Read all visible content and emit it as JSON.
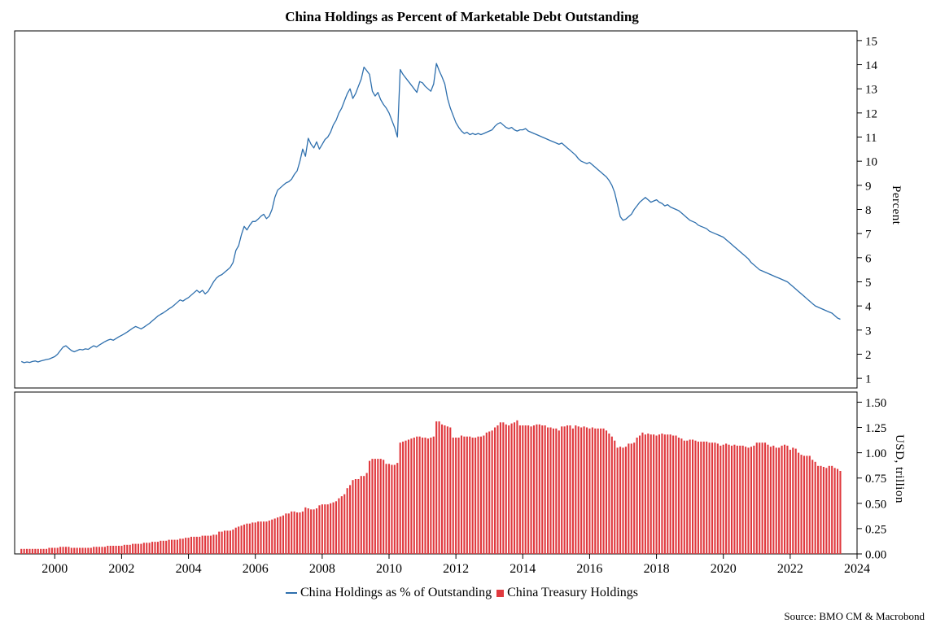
{
  "title": "China Holdings as Percent of Marketable Debt Outstanding",
  "source": "Source: BMO CM & Macrobond",
  "colors": {
    "line": "#2e6fad",
    "bar": "#e0393e",
    "axis": "#000000"
  },
  "legend": {
    "items": [
      {
        "label": "China Holdings as % of Outstanding",
        "marker": "line",
        "color": "#2e6fad"
      },
      {
        "label": "China Treasury Holdings",
        "marker": "square",
        "color": "#e0393e"
      }
    ]
  },
  "x_axis": {
    "lim": [
      1998.8,
      2024.0
    ],
    "ticks": [
      2000,
      2002,
      2004,
      2006,
      2008,
      2010,
      2012,
      2014,
      2016,
      2018,
      2020,
      2022,
      2024
    ]
  },
  "chart_data": [
    {
      "type": "line",
      "name": "China Holdings as % of Outstanding",
      "ylabel": "Percent",
      "ylim": [
        0.6,
        15.4
      ],
      "yticks": [
        1,
        2,
        3,
        4,
        5,
        6,
        7,
        8,
        9,
        10,
        11,
        12,
        13,
        14,
        15
      ],
      "ytick_format": "int",
      "legend_position": "bottom",
      "grid": false,
      "x_start": 1999.0,
      "x_step": 0.083333,
      "values": [
        1.7,
        1.65,
        1.68,
        1.66,
        1.7,
        1.72,
        1.68,
        1.72,
        1.75,
        1.78,
        1.8,
        1.85,
        1.9,
        2.0,
        2.15,
        2.3,
        2.35,
        2.25,
        2.15,
        2.1,
        2.15,
        2.2,
        2.18,
        2.22,
        2.2,
        2.28,
        2.35,
        2.3,
        2.38,
        2.45,
        2.52,
        2.58,
        2.62,
        2.58,
        2.65,
        2.72,
        2.78,
        2.85,
        2.92,
        3.0,
        3.08,
        3.15,
        3.1,
        3.05,
        3.12,
        3.2,
        3.28,
        3.38,
        3.48,
        3.58,
        3.65,
        3.72,
        3.8,
        3.88,
        3.95,
        4.05,
        4.15,
        4.25,
        4.2,
        4.28,
        4.35,
        4.45,
        4.55,
        4.65,
        4.55,
        4.65,
        4.5,
        4.6,
        4.8,
        5.0,
        5.15,
        5.25,
        5.3,
        5.4,
        5.5,
        5.6,
        5.8,
        6.3,
        6.5,
        6.95,
        7.3,
        7.15,
        7.35,
        7.5,
        7.5,
        7.6,
        7.72,
        7.8,
        7.62,
        7.72,
        8.0,
        8.5,
        8.8,
        8.9,
        9.0,
        9.1,
        9.15,
        9.25,
        9.45,
        9.6,
        10.0,
        10.5,
        10.2,
        10.95,
        10.7,
        10.55,
        10.8,
        10.5,
        10.7,
        10.9,
        11.0,
        11.2,
        11.5,
        11.7,
        12.0,
        12.2,
        12.5,
        12.8,
        13.0,
        12.6,
        12.8,
        13.1,
        13.4,
        13.9,
        13.75,
        13.6,
        12.9,
        12.7,
        12.85,
        12.55,
        12.35,
        12.2,
        12.0,
        11.7,
        11.4,
        11.0,
        13.8,
        13.6,
        13.45,
        13.3,
        13.15,
        13.0,
        12.85,
        13.3,
        13.25,
        13.1,
        13.0,
        12.9,
        13.2,
        14.05,
        13.75,
        13.5,
        13.2,
        12.6,
        12.2,
        11.9,
        11.6,
        11.4,
        11.25,
        11.15,
        11.2,
        11.1,
        11.15,
        11.1,
        11.15,
        11.1,
        11.15,
        11.2,
        11.25,
        11.3,
        11.45,
        11.55,
        11.6,
        11.5,
        11.4,
        11.35,
        11.4,
        11.3,
        11.25,
        11.3,
        11.3,
        11.35,
        11.25,
        11.2,
        11.15,
        11.1,
        11.05,
        11.0,
        10.95,
        10.9,
        10.85,
        10.8,
        10.75,
        10.7,
        10.75,
        10.65,
        10.55,
        10.45,
        10.35,
        10.25,
        10.1,
        10.0,
        9.95,
        9.9,
        9.95,
        9.85,
        9.75,
        9.65,
        9.55,
        9.45,
        9.35,
        9.2,
        9.0,
        8.7,
        8.2,
        7.7,
        7.55,
        7.6,
        7.7,
        7.8,
        8.0,
        8.15,
        8.3,
        8.4,
        8.5,
        8.4,
        8.3,
        8.35,
        8.4,
        8.3,
        8.25,
        8.15,
        8.2,
        8.1,
        8.05,
        8.0,
        7.95,
        7.85,
        7.75,
        7.65,
        7.55,
        7.5,
        7.45,
        7.35,
        7.3,
        7.25,
        7.2,
        7.1,
        7.05,
        7.0,
        6.95,
        6.9,
        6.85,
        6.75,
        6.65,
        6.55,
        6.45,
        6.35,
        6.25,
        6.15,
        6.05,
        5.95,
        5.8,
        5.7,
        5.6,
        5.5,
        5.45,
        5.4,
        5.35,
        5.3,
        5.25,
        5.2,
        5.15,
        5.1,
        5.05,
        5.0,
        4.9,
        4.8,
        4.7,
        4.6,
        4.5,
        4.4,
        4.3,
        4.2,
        4.1,
        4.0,
        3.95,
        3.9,
        3.85,
        3.8,
        3.75,
        3.7,
        3.6,
        3.5,
        3.45
      ]
    },
    {
      "type": "bar",
      "name": "China Treasury Holdings",
      "ylabel": "USD, trillion",
      "ylim": [
        0,
        1.6
      ],
      "yticks": [
        0,
        0.25,
        0.5,
        0.75,
        1.0,
        1.25,
        1.5
      ],
      "ytick_format": "fixed2",
      "grid": false,
      "x_start": 1999.0,
      "x_step": 0.083333,
      "values": [
        0.05,
        0.05,
        0.05,
        0.05,
        0.05,
        0.05,
        0.05,
        0.05,
        0.05,
        0.05,
        0.06,
        0.06,
        0.06,
        0.06,
        0.07,
        0.07,
        0.07,
        0.07,
        0.06,
        0.06,
        0.06,
        0.06,
        0.06,
        0.06,
        0.06,
        0.06,
        0.07,
        0.07,
        0.07,
        0.07,
        0.07,
        0.08,
        0.08,
        0.08,
        0.08,
        0.08,
        0.08,
        0.09,
        0.09,
        0.09,
        0.1,
        0.1,
        0.1,
        0.1,
        0.11,
        0.11,
        0.11,
        0.12,
        0.12,
        0.12,
        0.13,
        0.13,
        0.13,
        0.14,
        0.14,
        0.14,
        0.14,
        0.15,
        0.15,
        0.16,
        0.16,
        0.17,
        0.17,
        0.17,
        0.17,
        0.18,
        0.18,
        0.18,
        0.18,
        0.19,
        0.19,
        0.22,
        0.22,
        0.23,
        0.23,
        0.23,
        0.24,
        0.26,
        0.27,
        0.28,
        0.29,
        0.3,
        0.3,
        0.31,
        0.31,
        0.32,
        0.32,
        0.32,
        0.32,
        0.33,
        0.34,
        0.35,
        0.36,
        0.37,
        0.38,
        0.4,
        0.4,
        0.42,
        0.42,
        0.41,
        0.41,
        0.42,
        0.46,
        0.45,
        0.44,
        0.44,
        0.45,
        0.48,
        0.49,
        0.49,
        0.49,
        0.5,
        0.51,
        0.52,
        0.55,
        0.57,
        0.59,
        0.65,
        0.68,
        0.73,
        0.74,
        0.74,
        0.77,
        0.77,
        0.8,
        0.92,
        0.94,
        0.94,
        0.94,
        0.94,
        0.93,
        0.89,
        0.89,
        0.88,
        0.88,
        0.9,
        1.1,
        1.11,
        1.12,
        1.13,
        1.14,
        1.15,
        1.16,
        1.16,
        1.15,
        1.15,
        1.14,
        1.15,
        1.16,
        1.31,
        1.31,
        1.28,
        1.27,
        1.26,
        1.25,
        1.15,
        1.15,
        1.15,
        1.17,
        1.16,
        1.16,
        1.16,
        1.15,
        1.15,
        1.16,
        1.16,
        1.17,
        1.2,
        1.21,
        1.22,
        1.25,
        1.27,
        1.3,
        1.3,
        1.28,
        1.27,
        1.29,
        1.3,
        1.32,
        1.27,
        1.27,
        1.27,
        1.27,
        1.26,
        1.27,
        1.28,
        1.28,
        1.27,
        1.27,
        1.25,
        1.25,
        1.24,
        1.24,
        1.22,
        1.26,
        1.26,
        1.27,
        1.27,
        1.24,
        1.27,
        1.26,
        1.25,
        1.26,
        1.25,
        1.24,
        1.25,
        1.24,
        1.24,
        1.24,
        1.24,
        1.22,
        1.19,
        1.16,
        1.12,
        1.05,
        1.06,
        1.05,
        1.06,
        1.09,
        1.09,
        1.1,
        1.15,
        1.17,
        1.2,
        1.18,
        1.19,
        1.18,
        1.18,
        1.17,
        1.18,
        1.19,
        1.18,
        1.18,
        1.18,
        1.17,
        1.17,
        1.15,
        1.14,
        1.12,
        1.12,
        1.13,
        1.13,
        1.12,
        1.11,
        1.11,
        1.11,
        1.11,
        1.1,
        1.1,
        1.1,
        1.09,
        1.07,
        1.08,
        1.09,
        1.08,
        1.07,
        1.08,
        1.07,
        1.07,
        1.07,
        1.06,
        1.05,
        1.06,
        1.07,
        1.1,
        1.1,
        1.1,
        1.1,
        1.08,
        1.06,
        1.07,
        1.05,
        1.05,
        1.07,
        1.08,
        1.07,
        1.03,
        1.05,
        1.04,
        1.0,
        0.98,
        0.97,
        0.97,
        0.97,
        0.93,
        0.91,
        0.87,
        0.87,
        0.86,
        0.85,
        0.87,
        0.87,
        0.85,
        0.84,
        0.82
      ]
    }
  ]
}
